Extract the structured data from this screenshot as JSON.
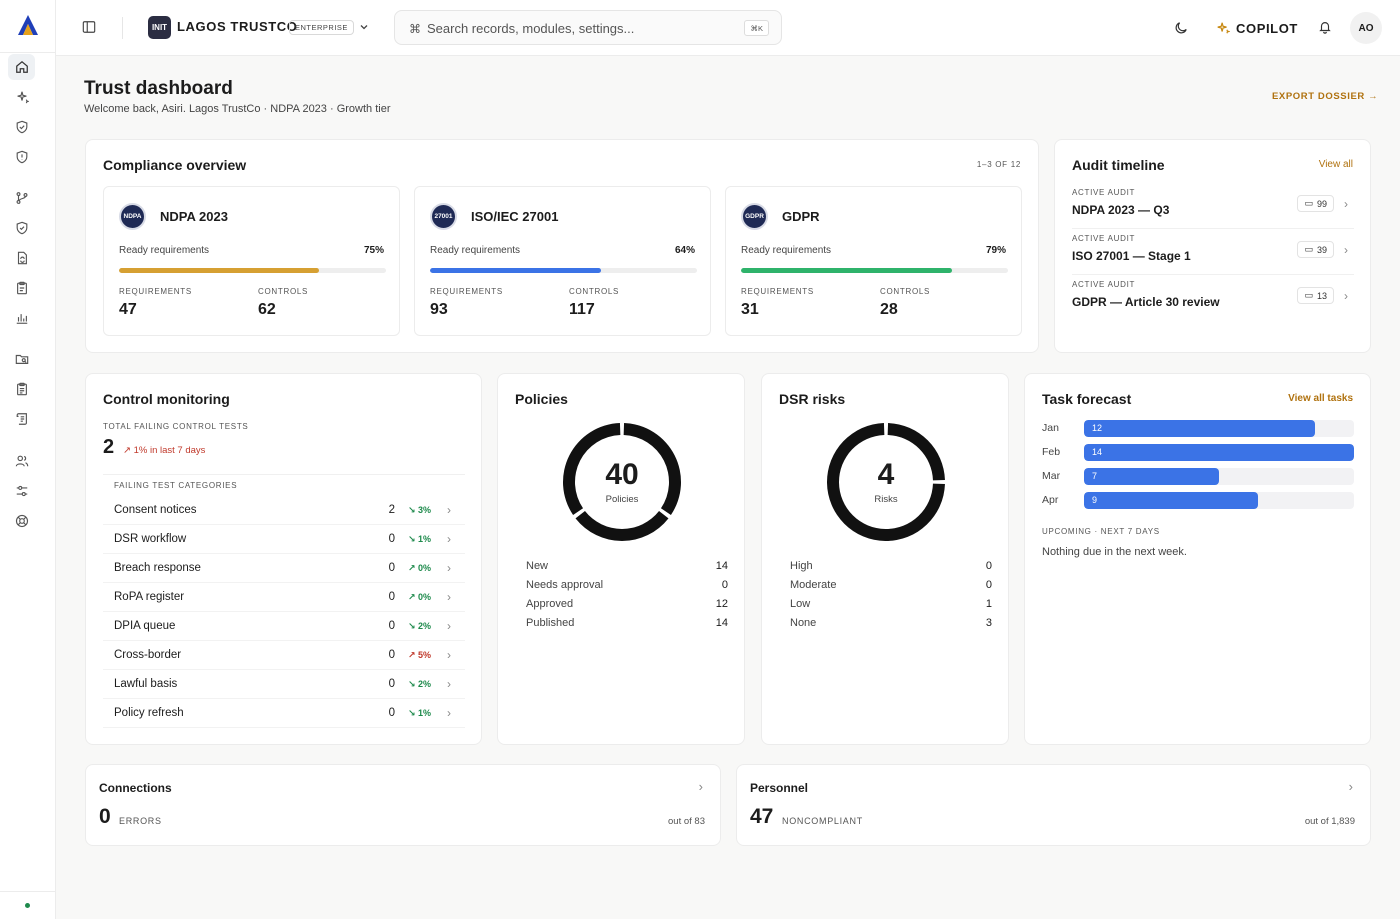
{
  "brand": {
    "accent": "#b0720f",
    "primary_blue": "#3b73e6"
  },
  "sidebar": {
    "items": [
      {
        "icon": "home-icon",
        "active": true
      },
      {
        "icon": "sparkles-icon"
      },
      {
        "icon": "shield-check-icon"
      },
      {
        "icon": "shield-alert-icon"
      },
      {
        "icon": "git-branch-icon"
      },
      {
        "icon": "shield-icon"
      },
      {
        "icon": "file-sync-icon"
      },
      {
        "icon": "clipboard-icon"
      },
      {
        "icon": "bar-chart-icon"
      },
      {
        "icon": "folder-search-icon"
      },
      {
        "icon": "clipboard-list-icon"
      },
      {
        "icon": "scroll-icon"
      },
      {
        "icon": "users-icon"
      },
      {
        "icon": "sliders-icon"
      },
      {
        "icon": "help-circle-icon"
      }
    ]
  },
  "topbar": {
    "org_logo_text": "INIT",
    "org_name": "LAGOS TRUSTCO",
    "org_tier": "ENTERPRISE",
    "search_placeholder": "Search records, modules, settings...",
    "search_icon_glyph": "⌘",
    "search_shortcut": "⌘K",
    "copilot_label": "COPILOT",
    "avatar_initials": "AO"
  },
  "page": {
    "title": "Trust dashboard",
    "subtitle": "Welcome back, Asiri. Lagos TrustCo · NDPA 2023 · Growth tier",
    "export_label": "EXPORT DOSSIER →"
  },
  "compliance": {
    "title": "Compliance overview",
    "pager": "1–3 OF 12",
    "frameworks": [
      {
        "logo": "NDPA",
        "name": "NDPA 2023",
        "ready_label": "Ready requirements",
        "pct_label": "75%",
        "pct": 0.75,
        "color": "#d6a032",
        "req_label": "REQUIREMENTS",
        "req": "47",
        "ctrl_label": "CONTROLS",
        "ctrl": "62"
      },
      {
        "logo": "27001",
        "name": "ISO/IEC 27001",
        "ready_label": "Ready requirements",
        "pct_label": "64%",
        "pct": 0.64,
        "color": "#3b73e6",
        "req_label": "REQUIREMENTS",
        "req": "93",
        "ctrl_label": "CONTROLS",
        "ctrl": "117"
      },
      {
        "logo": "GDPR",
        "name": "GDPR",
        "ready_label": "Ready requirements",
        "pct_label": "79%",
        "pct": 0.79,
        "color": "#2fb36b",
        "req_label": "REQUIREMENTS",
        "req": "31",
        "ctrl_label": "CONTROLS",
        "ctrl": "28"
      }
    ]
  },
  "audit": {
    "title": "Audit timeline",
    "view_all": "View all",
    "items": [
      {
        "cap": "ACTIVE AUDIT",
        "name": "NDPA 2023 — Q3",
        "comments": "99"
      },
      {
        "cap": "ACTIVE AUDIT",
        "name": "ISO 27001 — Stage 1",
        "comments": "39"
      },
      {
        "cap": "ACTIVE AUDIT",
        "name": "GDPR — Article 30 review",
        "comments": "13"
      }
    ]
  },
  "control_monitoring": {
    "title": "Control monitoring",
    "total_label": "TOTAL FAILING CONTROL TESTS",
    "total": "2",
    "trend": "↗ 1% in last 7 days",
    "categories_label": "FAILING TEST CATEGORIES",
    "rows": [
      {
        "name": "Consent notices",
        "count": "2",
        "delta": "↘ 3%",
        "dir": "down"
      },
      {
        "name": "DSR workflow",
        "count": "0",
        "delta": "↘ 1%",
        "dir": "down"
      },
      {
        "name": "Breach response",
        "count": "0",
        "delta": "↗ 0%",
        "dir": "up-ok"
      },
      {
        "name": "RoPA register",
        "count": "0",
        "delta": "↗ 0%",
        "dir": "up-ok"
      },
      {
        "name": "DPIA queue",
        "count": "0",
        "delta": "↘ 2%",
        "dir": "down"
      },
      {
        "name": "Cross-border",
        "count": "0",
        "delta": "↗ 5%",
        "dir": "up"
      },
      {
        "name": "Lawful basis",
        "count": "0",
        "delta": "↘ 2%",
        "dir": "down"
      },
      {
        "name": "Policy refresh",
        "count": "0",
        "delta": "↘ 1%",
        "dir": "down"
      }
    ]
  },
  "policies": {
    "title": "Policies",
    "total": "40",
    "unit": "Policies",
    "stats": [
      {
        "label": "New",
        "value": "14"
      },
      {
        "label": "Needs approval",
        "value": "0"
      },
      {
        "label": "Approved",
        "value": "12"
      },
      {
        "label": "Published",
        "value": "14"
      }
    ]
  },
  "dsr": {
    "title": "DSR risks",
    "total": "4",
    "unit": "Risks",
    "stats": [
      {
        "label": "High",
        "value": "0"
      },
      {
        "label": "Moderate",
        "value": "0"
      },
      {
        "label": "Low",
        "value": "1"
      },
      {
        "label": "None",
        "value": "3"
      }
    ]
  },
  "tasks": {
    "title": "Task forecast",
    "view_all": "View all tasks",
    "max": 14,
    "months": [
      {
        "label": "Jan",
        "value": 12,
        "text": "12"
      },
      {
        "label": "Feb",
        "value": 14,
        "text": "14"
      },
      {
        "label": "Mar",
        "value": 7,
        "text": "7"
      },
      {
        "label": "Apr",
        "value": 9,
        "text": "9"
      }
    ],
    "upcoming_label": "UPCOMING · NEXT 7 DAYS",
    "upcoming_text": "Nothing due in the next week."
  },
  "connections": {
    "title": "Connections",
    "value": "0",
    "unit": "ERRORS",
    "out_of": "out of 83"
  },
  "personnel": {
    "title": "Personnel",
    "value": "47",
    "unit": "NONCOMPLIANT",
    "out_of": "out of 1,839"
  }
}
